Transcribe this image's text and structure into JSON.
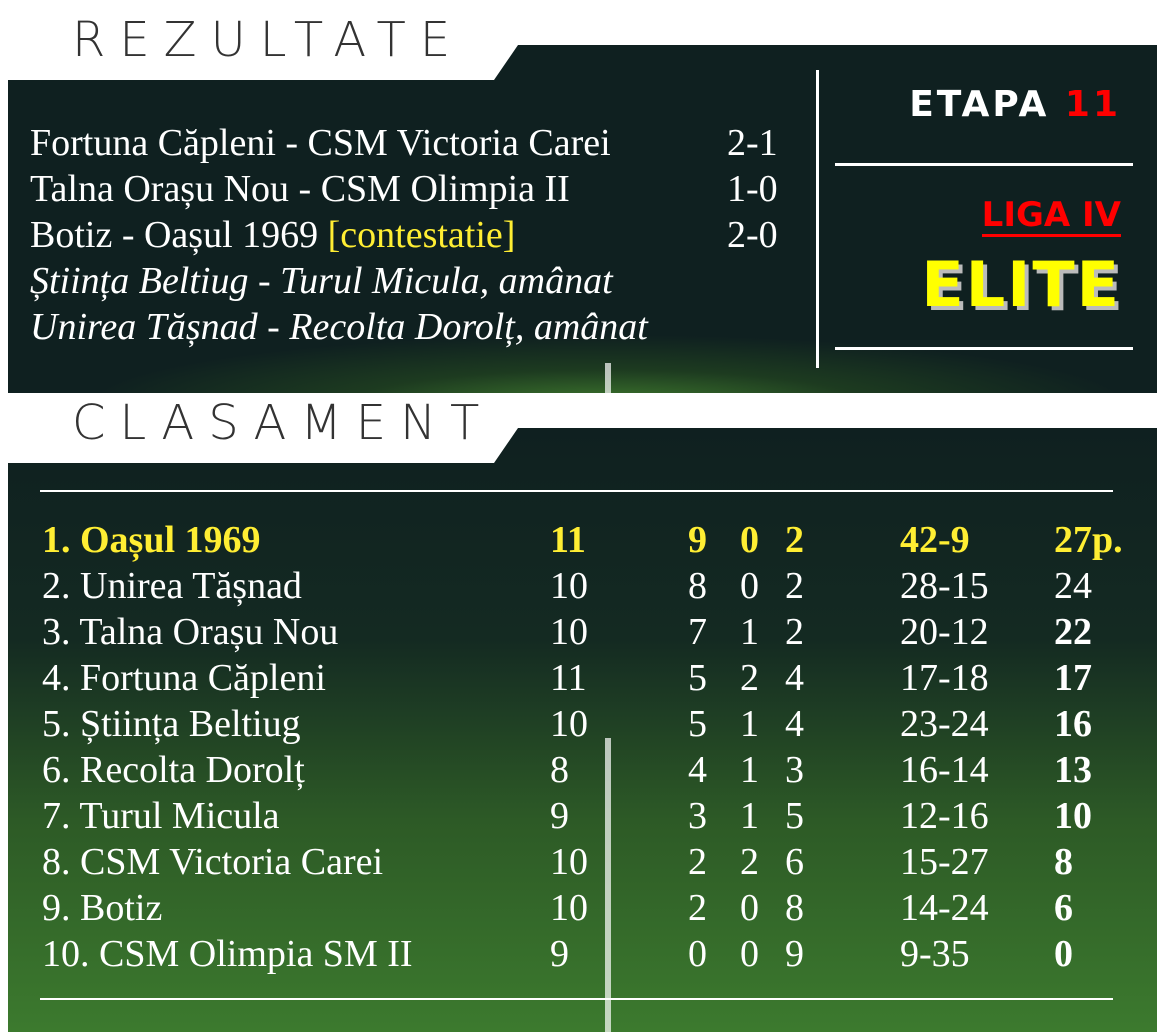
{
  "sections": {
    "results_title": "REZULTATE",
    "standings_title": "CLASAMENT"
  },
  "header": {
    "etapa_label": "ETAPA",
    "etapa_number": "11",
    "league": "LIGA IV",
    "division": "ELITE"
  },
  "colors": {
    "panel": "#0f2020",
    "highlight": "#ffee33",
    "accent_red": "#ff0000"
  },
  "results": [
    {
      "match": "Fortuna Căpleni - CSM Victoria Carei",
      "note": "",
      "score": "2-1",
      "postponed": false
    },
    {
      "match": "Talna Orașu Nou - CSM Olimpia II",
      "note": "",
      "score": "1-0",
      "postponed": false
    },
    {
      "match": "Botiz - Oașul 1969",
      "note": "[contestatie]",
      "score": "2-0",
      "postponed": false
    },
    {
      "match": "Știința Beltiug - Turul Micula, amânat",
      "note": "",
      "score": "",
      "postponed": true
    },
    {
      "match": "Unirea Tășnad - Recolta Dorolț, amânat",
      "note": "",
      "score": "",
      "postponed": true
    }
  ],
  "standings": [
    {
      "team": "1. Oașul 1969",
      "played": "11",
      "w": "9",
      "d": "0",
      "l": "2",
      "goals": "42-9",
      "points": "27p."
    },
    {
      "team": "2. Unirea Tășnad",
      "played": "10",
      "w": "8",
      "d": "0",
      "l": "2",
      "goals": "28-15",
      "points": "24"
    },
    {
      "team": "3. Talna Orașu Nou",
      "played": "10",
      "w": "7",
      "d": "1",
      "l": "2",
      "goals": "20-12",
      "points": "22"
    },
    {
      "team": "4. Fortuna Căpleni",
      "played": "11",
      "w": "5",
      "d": "2",
      "l": "4",
      "goals": "17-18",
      "points": "17"
    },
    {
      "team": "5. Știința Beltiug",
      "played": "10",
      "w": "5",
      "d": "1",
      "l": "4",
      "goals": "23-24",
      "points": "16"
    },
    {
      "team": "6. Recolta Dorolț",
      "played": "8",
      "w": "4",
      "d": "1",
      "l": "3",
      "goals": "16-14",
      "points": "13"
    },
    {
      "team": "7. Turul Micula",
      "played": "9",
      "w": "3",
      "d": "1",
      "l": "5",
      "goals": "12-16",
      "points": "10"
    },
    {
      "team": "8. CSM Victoria Carei",
      "played": "10",
      "w": "2",
      "d": "2",
      "l": "6",
      "goals": "15-27",
      "points": "8"
    },
    {
      "team": "9. Botiz",
      "played": "10",
      "w": "2",
      "d": "0",
      "l": "8",
      "goals": "14-24",
      "points": "6"
    },
    {
      "team": "10. CSM Olimpia SM II",
      "played": "9",
      "w": "0",
      "d": "0",
      "l": "9",
      "goals": "9-35",
      "points": "0"
    }
  ]
}
